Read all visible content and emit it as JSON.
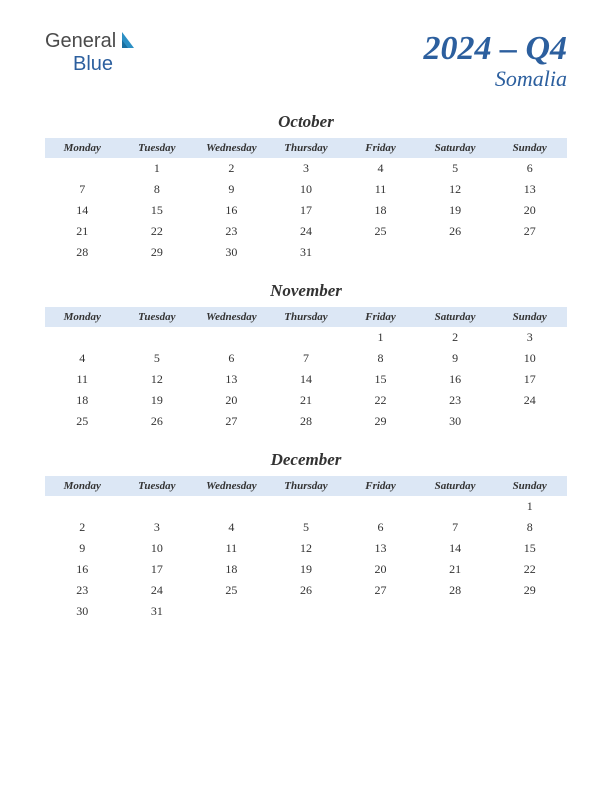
{
  "logo": {
    "text1": "General",
    "text2": "Blue",
    "text1_color": "#4a4a4a",
    "text2_color": "#2c5f9e",
    "icon_color": "#2c8fc4",
    "fontsize": 20
  },
  "title": {
    "main": "2024 – Q4",
    "sub": "Somalia",
    "color": "#2c5f9e",
    "main_fontsize": 34,
    "sub_fontsize": 22
  },
  "weekdays": [
    "Monday",
    "Tuesday",
    "Wednesday",
    "Thursday",
    "Friday",
    "Saturday",
    "Sunday"
  ],
  "header_bg": "#dce7f5",
  "header_fontsize": 11,
  "cell_fontsize": 12,
  "month_title_fontsize": 17,
  "text_color": "#333333",
  "background_color": "#ffffff",
  "months": [
    {
      "name": "October",
      "rows": [
        [
          "",
          "1",
          "2",
          "3",
          "4",
          "5",
          "6"
        ],
        [
          "7",
          "8",
          "9",
          "10",
          "11",
          "12",
          "13"
        ],
        [
          "14",
          "15",
          "16",
          "17",
          "18",
          "19",
          "20"
        ],
        [
          "21",
          "22",
          "23",
          "24",
          "25",
          "26",
          "27"
        ],
        [
          "28",
          "29",
          "30",
          "31",
          "",
          "",
          ""
        ]
      ]
    },
    {
      "name": "November",
      "rows": [
        [
          "",
          "",
          "",
          "",
          "1",
          "2",
          "3"
        ],
        [
          "4",
          "5",
          "6",
          "7",
          "8",
          "9",
          "10"
        ],
        [
          "11",
          "12",
          "13",
          "14",
          "15",
          "16",
          "17"
        ],
        [
          "18",
          "19",
          "20",
          "21",
          "22",
          "23",
          "24"
        ],
        [
          "25",
          "26",
          "27",
          "28",
          "29",
          "30",
          ""
        ]
      ]
    },
    {
      "name": "December",
      "rows": [
        [
          "",
          "",
          "",
          "",
          "",
          "",
          "1"
        ],
        [
          "2",
          "3",
          "4",
          "5",
          "6",
          "7",
          "8"
        ],
        [
          "9",
          "10",
          "11",
          "12",
          "13",
          "14",
          "15"
        ],
        [
          "16",
          "17",
          "18",
          "19",
          "20",
          "21",
          "22"
        ],
        [
          "23",
          "24",
          "25",
          "26",
          "27",
          "28",
          "29"
        ],
        [
          "30",
          "31",
          "",
          "",
          "",
          "",
          ""
        ]
      ]
    }
  ]
}
